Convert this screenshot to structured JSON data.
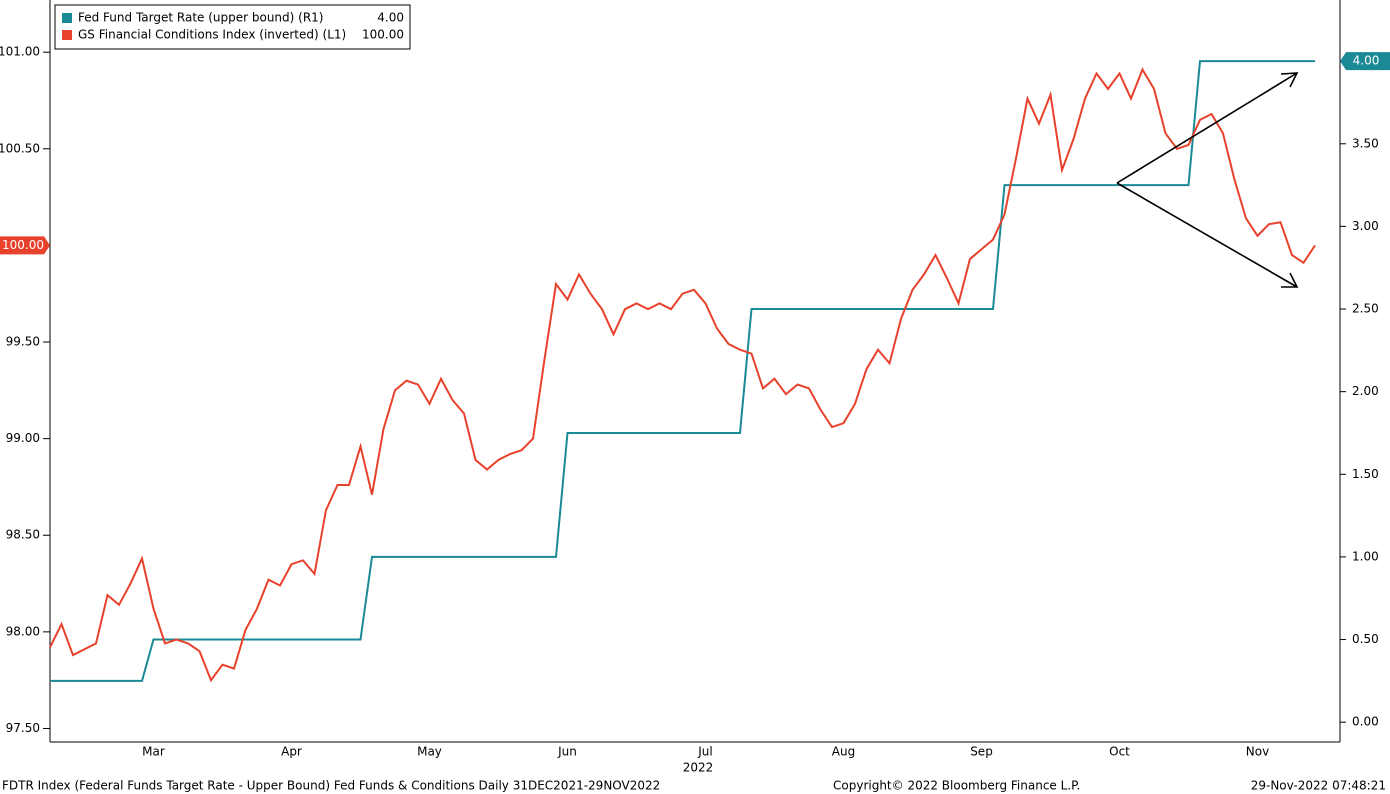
{
  "chart_data": {
    "type": "line",
    "categories": [
      null,
      null,
      null,
      null,
      null,
      null,
      null,
      null,
      null,
      "Mar",
      null,
      null,
      null,
      null,
      null,
      null,
      null,
      null,
      null,
      null,
      null,
      "Apr",
      null,
      null,
      null,
      null,
      null,
      null,
      null,
      null,
      null,
      null,
      null,
      "May",
      null,
      null,
      null,
      null,
      null,
      null,
      null,
      null,
      null,
      null,
      null,
      "Jun",
      null,
      null,
      null,
      null,
      null,
      null,
      null,
      null,
      null,
      null,
      null,
      "Jul",
      null,
      null,
      null,
      null,
      null,
      null,
      null,
      null,
      null,
      null,
      null,
      "Aug",
      null,
      null,
      null,
      null,
      null,
      null,
      null,
      null,
      null,
      null,
      null,
      "Sep",
      null,
      null,
      null,
      null,
      null,
      null,
      null,
      null,
      null,
      null,
      null,
      "Oct",
      null,
      null,
      null,
      null,
      null,
      null,
      null,
      null,
      null,
      null,
      null,
      "Nov",
      null,
      null,
      null,
      null,
      null
    ],
    "xlabel": "2022",
    "series": [
      {
        "name": "Fed Fund Target Rate (upper bound) (R1)",
        "color": "#1a8a96",
        "axis": "y2",
        "legend_value": {
          "value": 4,
          "label": "4.00"
        },
        "values": [
          0.25,
          0.25,
          0.25,
          0.25,
          0.25,
          0.25,
          0.25,
          0.25,
          0.25,
          0.5,
          0.5,
          0.5,
          0.5,
          0.5,
          0.5,
          0.5,
          0.5,
          0.5,
          0.5,
          0.5,
          0.5,
          0.5,
          0.5,
          0.5,
          0.5,
          0.5,
          0.5,
          0.5,
          1,
          1,
          1,
          1,
          1,
          1,
          1,
          1,
          1,
          1,
          1,
          1,
          1,
          1,
          1,
          1,
          1,
          1.75,
          1.75,
          1.75,
          1.75,
          1.75,
          1.75,
          1.75,
          1.75,
          1.75,
          1.75,
          1.75,
          1.75,
          1.75,
          1.75,
          1.75,
          1.75,
          2.5,
          2.5,
          2.5,
          2.5,
          2.5,
          2.5,
          2.5,
          2.5,
          2.5,
          2.5,
          2.5,
          2.5,
          2.5,
          2.5,
          2.5,
          2.5,
          2.5,
          2.5,
          2.5,
          2.5,
          2.5,
          2.5,
          3.25,
          3.25,
          3.25,
          3.25,
          3.25,
          3.25,
          3.25,
          3.25,
          3.25,
          3.25,
          3.25,
          3.25,
          3.25,
          3.25,
          3.25,
          3.25,
          3.25,
          4,
          4,
          4,
          4,
          4,
          4,
          4,
          4,
          4,
          4,
          4
        ]
      },
      {
        "name": "GS Financial Conditions Index (inverted) (L1)",
        "color": "#e8412c",
        "legend_value": {
          "value": 100,
          "label": "100.00"
        },
        "values": [
          97.92,
          98.04,
          97.88,
          97.91,
          97.94,
          98.19,
          98.14,
          98.25,
          98.38,
          98.12,
          97.94,
          97.96,
          97.94,
          97.9,
          97.75,
          97.83,
          97.81,
          98.01,
          98.12,
          98.27,
          98.24,
          98.35,
          98.37,
          98.3,
          98.63,
          98.76,
          98.76,
          98.96,
          98.71,
          99.05,
          99.25,
          99.3,
          99.28,
          99.18,
          99.31,
          99.2,
          99.13,
          98.89,
          98.84,
          98.89,
          98.92,
          98.94,
          99.0,
          99.41,
          99.8,
          99.72,
          99.85,
          99.75,
          99.67,
          99.54,
          99.67,
          99.7,
          99.67,
          99.7,
          99.67,
          99.75,
          99.77,
          99.7,
          99.57,
          99.49,
          99.46,
          99.44,
          99.26,
          99.31,
          99.23,
          99.28,
          99.26,
          99.15,
          99.06,
          99.08,
          99.18,
          99.36,
          99.46,
          99.39,
          99.62,
          99.77,
          99.85,
          99.95,
          99.83,
          99.7,
          99.93,
          99.98,
          100.03,
          100.16,
          100.45,
          100.76,
          100.63,
          100.78,
          100.39,
          100.55,
          100.76,
          100.89,
          100.81,
          100.89,
          100.76,
          100.91,
          100.81,
          100.58,
          100.5,
          100.52,
          100.65,
          100.68,
          100.58,
          100.34,
          100.14,
          100.05,
          100.11,
          100.12,
          99.95,
          99.91,
          100.0
        ]
      }
    ],
    "ylim": [
      97.43,
      101.27
    ],
    "yticks": [
      {
        "value": 97.5,
        "label": "97.50"
      },
      {
        "value": 98,
        "label": "98.00"
      },
      {
        "value": 98.5,
        "label": "98.50"
      },
      {
        "value": 99,
        "label": "99.00"
      },
      {
        "value": 99.5,
        "label": "99.50"
      },
      {
        "value": 100,
        "label": "100.00"
      },
      {
        "value": 100.5,
        "label": "100.50"
      },
      {
        "value": 101,
        "label": "101.00"
      }
    ],
    "y2lim": [
      -0.12,
      4.37
    ],
    "y2ticks": [
      {
        "value": 0,
        "label": "0.00"
      },
      {
        "value": 0.5,
        "label": "0.50"
      },
      {
        "value": 1,
        "label": "1.00"
      },
      {
        "value": 1.5,
        "label": "1.50"
      },
      {
        "value": 2,
        "label": "2.00"
      },
      {
        "value": 2.5,
        "label": "2.50"
      },
      {
        "value": 3,
        "label": "3.00"
      },
      {
        "value": 3.5,
        "label": "3.50"
      },
      {
        "value": 4,
        "label": "4.00"
      }
    ],
    "grid": false,
    "footer_left": "FDTR Index (Federal Funds Target Rate - Upper Bound) Fed Funds & Conditions  Daily 31DEC2021-29NOV2022",
    "footer_center": "Copyright© 2022 Bloomberg Finance L.P.",
    "footer_right": "29-Nov-2022 07:48:21"
  }
}
